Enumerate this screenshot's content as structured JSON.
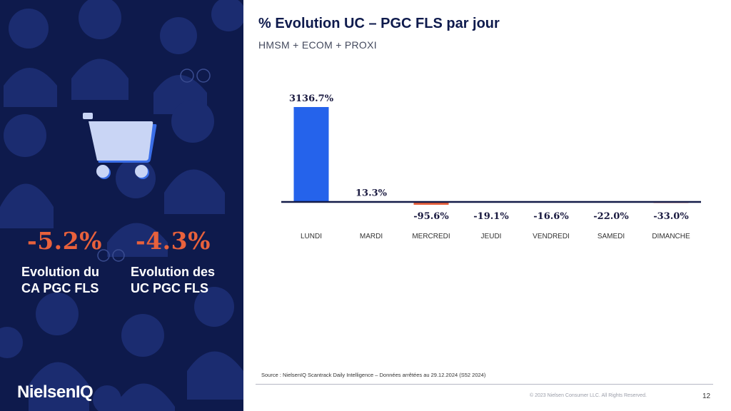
{
  "kpis": [
    {
      "value": "-5.2%",
      "label_line1": "Evolution du",
      "label_line2": "CA PGC FLS"
    },
    {
      "value": "-4.3%",
      "label_line1": "Evolution des",
      "label_line2": "UC PGC FLS"
    }
  ],
  "brand": "NielsenIQ",
  "chart_data": {
    "type": "bar",
    "title": "% Evolution UC – PGC FLS par jour",
    "subtitle": "HMSM + ECOM + PROXI",
    "categories": [
      "LUNDI",
      "MARDI",
      "MERCREDI",
      "JEUDI",
      "VENDREDI",
      "SAMEDI",
      "DIMANCHE"
    ],
    "values": [
      3136.7,
      13.3,
      -95.6,
      -19.1,
      -16.6,
      -22.0,
      -33.0
    ],
    "data_labels": [
      "3136.7%",
      "13.3%",
      "-95.6%",
      "-19.1%",
      "-16.6%",
      "-22.0%",
      "-33.0%"
    ],
    "ylim": [
      -100,
      3136.7
    ],
    "xlabel": "",
    "ylabel": "",
    "grid": false,
    "colors": {
      "positive": "#2563eb",
      "negative": "#e8613c",
      "axis": "#141b48",
      "label": "#1a1a40"
    }
  },
  "footer": {
    "source": "Source : NielsenIQ Scantrack Daily Intelligence – Données arrêtées au 29.12.2024 (S52 2024)",
    "copyright": "© 2023 Nielsen Consumer LLC. All Rights Reserved.",
    "page": "12"
  },
  "colors": {
    "panel_bg": "#0e1a4c",
    "kpi_accent": "#e8613c",
    "cart": "#c9d5f5",
    "cart_shadow": "#3a6ee8"
  }
}
